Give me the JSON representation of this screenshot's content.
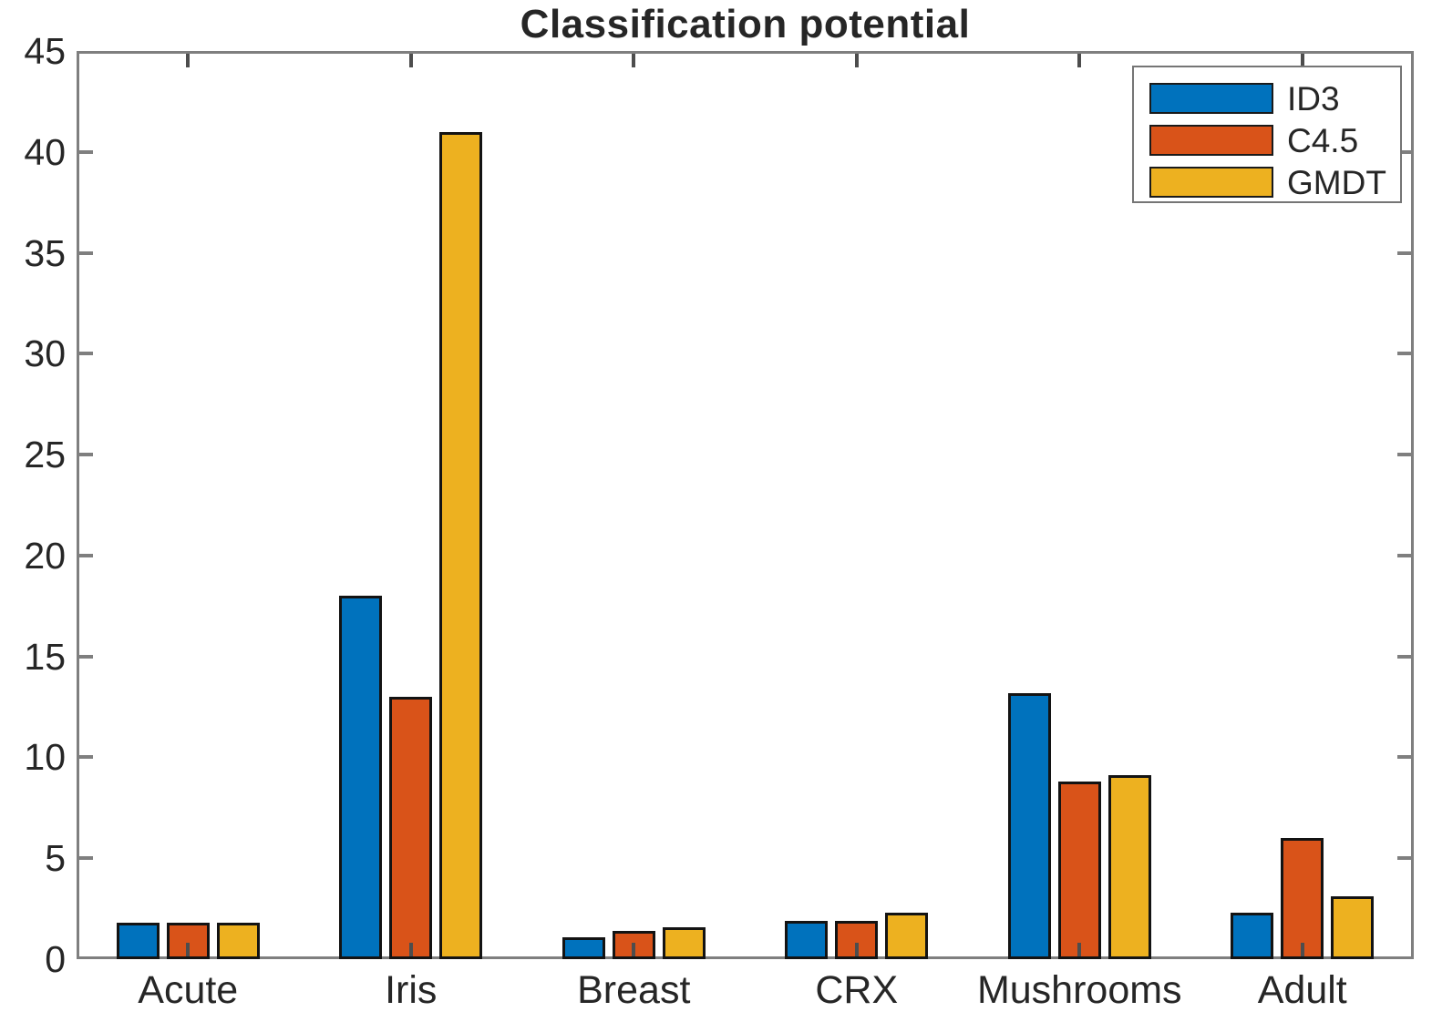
{
  "chart_data": {
    "type": "bar",
    "title": "Classification potential",
    "categories": [
      "Acute",
      "Iris",
      "Breast",
      "CRX",
      "Mushrooms",
      "Adult"
    ],
    "series": [
      {
        "name": "ID3",
        "color": "#0072BD",
        "values": [
          1.8,
          18,
          1.1,
          1.9,
          13.2,
          2.3
        ]
      },
      {
        "name": "C4.5",
        "color": "#D95319",
        "values": [
          1.8,
          13,
          1.4,
          1.9,
          8.8,
          6.0
        ]
      },
      {
        "name": "GMDT",
        "color": "#EDB120",
        "values": [
          1.8,
          41,
          1.6,
          2.3,
          9.1,
          3.1
        ]
      }
    ],
    "xlabel": "",
    "ylabel": "",
    "ylim": [
      0,
      45
    ],
    "yticks": [
      0,
      5,
      10,
      15,
      20,
      25,
      30,
      35,
      40,
      45
    ],
    "grid": false,
    "legend_position": "top-right"
  },
  "style_colors": {
    "axis_box": "#7f7f7f",
    "tick_mark": "#7f7f7f",
    "category_tick_mark": "#4d4d4d",
    "text": "#262626",
    "bar_edge": "#131313",
    "legend_border": "#757575",
    "background": "#ffffff"
  }
}
